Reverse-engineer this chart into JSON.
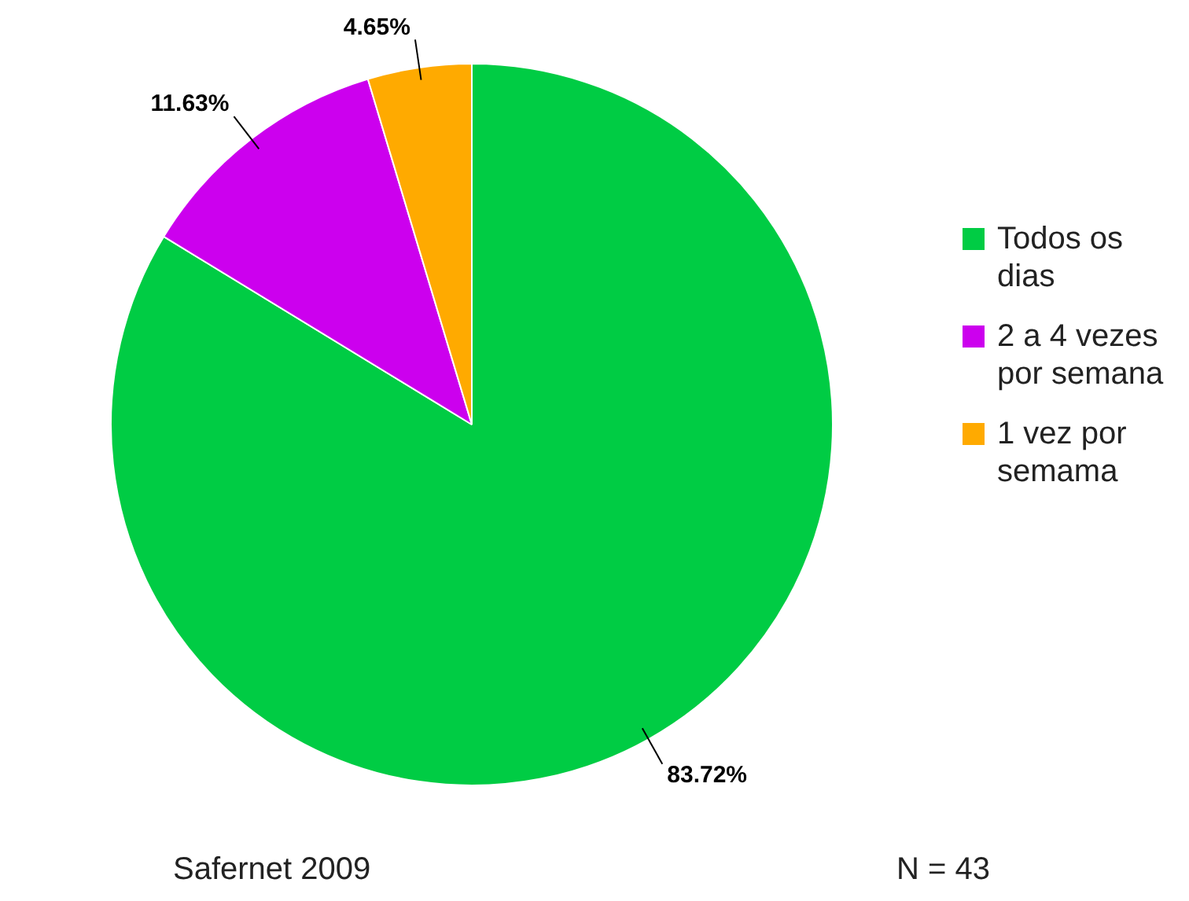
{
  "chart_data": {
    "type": "pie",
    "categories": [
      "Todos os dias",
      "2 a 4 vezes por semana",
      "1 vez por semama"
    ],
    "values": [
      83.72,
      11.63,
      4.65
    ],
    "colors": [
      "#00cc44",
      "#cc00ee",
      "#ffaa00"
    ],
    "value_labels": [
      "83.72%",
      "11.63%",
      "4.65%"
    ],
    "legend": "right",
    "annotations": [
      "Safernet 2009",
      "N = 43"
    ]
  }
}
